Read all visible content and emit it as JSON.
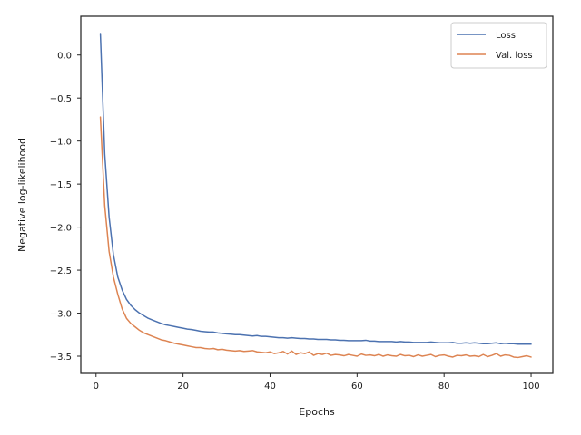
{
  "chart_data": {
    "type": "line",
    "xlabel": "Epochs",
    "ylabel": "Negative log-likelihood",
    "xlim": [
      -3.5,
      105
    ],
    "ylim": [
      -3.7,
      0.45
    ],
    "xticks": [
      0,
      20,
      40,
      60,
      80,
      100
    ],
    "yticks": [
      0.0,
      -0.5,
      -1.0,
      -1.5,
      -2.0,
      -2.5,
      -3.0,
      -3.5
    ],
    "xtick_labels": [
      "0",
      "20",
      "40",
      "60",
      "80",
      "100"
    ],
    "ytick_labels": [
      "0.0",
      "−0.5",
      "−1.0",
      "−1.5",
      "−2.0",
      "−2.5",
      "−3.0",
      "−3.5"
    ],
    "grid": false,
    "legend_position": "top-right",
    "x": [
      1,
      2,
      3,
      4,
      5,
      6,
      7,
      8,
      9,
      10,
      11,
      12,
      13,
      14,
      15,
      16,
      17,
      18,
      19,
      20,
      21,
      22,
      23,
      24,
      25,
      26,
      27,
      28,
      29,
      30,
      31,
      32,
      33,
      34,
      35,
      36,
      37,
      38,
      39,
      40,
      41,
      42,
      43,
      44,
      45,
      46,
      47,
      48,
      49,
      50,
      51,
      52,
      53,
      54,
      55,
      56,
      57,
      58,
      59,
      60,
      61,
      62,
      63,
      64,
      65,
      66,
      67,
      68,
      69,
      70,
      71,
      72,
      73,
      74,
      75,
      76,
      77,
      78,
      79,
      80,
      81,
      82,
      83,
      84,
      85,
      86,
      87,
      88,
      89,
      90,
      91,
      92,
      93,
      94,
      95,
      96,
      97,
      98,
      99,
      100
    ],
    "series": [
      {
        "name": "Loss",
        "color": "#4c72b0",
        "values": [
          0.25,
          -1.15,
          -1.88,
          -2.32,
          -2.58,
          -2.73,
          -2.84,
          -2.91,
          -2.96,
          -3.0,
          -3.03,
          -3.06,
          -3.08,
          -3.1,
          -3.12,
          -3.135,
          -3.145,
          -3.155,
          -3.165,
          -3.175,
          -3.185,
          -3.19,
          -3.2,
          -3.21,
          -3.215,
          -3.22,
          -3.22,
          -3.23,
          -3.235,
          -3.24,
          -3.245,
          -3.25,
          -3.25,
          -3.255,
          -3.26,
          -3.265,
          -3.26,
          -3.27,
          -3.27,
          -3.275,
          -3.28,
          -3.285,
          -3.285,
          -3.29,
          -3.285,
          -3.29,
          -3.295,
          -3.295,
          -3.3,
          -3.3,
          -3.305,
          -3.305,
          -3.305,
          -3.31,
          -3.31,
          -3.315,
          -3.315,
          -3.32,
          -3.32,
          -3.32,
          -3.32,
          -3.315,
          -3.325,
          -3.325,
          -3.33,
          -3.33,
          -3.33,
          -3.33,
          -3.335,
          -3.33,
          -3.335,
          -3.335,
          -3.34,
          -3.34,
          -3.34,
          -3.34,
          -3.335,
          -3.34,
          -3.345,
          -3.345,
          -3.345,
          -3.34,
          -3.35,
          -3.35,
          -3.345,
          -3.35,
          -3.345,
          -3.35,
          -3.355,
          -3.355,
          -3.35,
          -3.345,
          -3.355,
          -3.35,
          -3.355,
          -3.355,
          -3.36,
          -3.36,
          -3.36,
          -3.36
        ]
      },
      {
        "name": "Val. loss",
        "color": "#dd8452",
        "values": [
          -0.72,
          -1.75,
          -2.28,
          -2.58,
          -2.78,
          -2.95,
          -3.06,
          -3.12,
          -3.16,
          -3.2,
          -3.23,
          -3.25,
          -3.27,
          -3.29,
          -3.31,
          -3.32,
          -3.335,
          -3.35,
          -3.36,
          -3.37,
          -3.38,
          -3.39,
          -3.4,
          -3.4,
          -3.41,
          -3.415,
          -3.41,
          -3.425,
          -3.42,
          -3.43,
          -3.435,
          -3.44,
          -3.435,
          -3.445,
          -3.44,
          -3.435,
          -3.45,
          -3.455,
          -3.46,
          -3.45,
          -3.47,
          -3.46,
          -3.445,
          -3.475,
          -3.44,
          -3.48,
          -3.46,
          -3.47,
          -3.45,
          -3.49,
          -3.47,
          -3.48,
          -3.465,
          -3.49,
          -3.48,
          -3.485,
          -3.495,
          -3.48,
          -3.49,
          -3.5,
          -3.475,
          -3.49,
          -3.485,
          -3.495,
          -3.48,
          -3.5,
          -3.485,
          -3.495,
          -3.5,
          -3.48,
          -3.495,
          -3.49,
          -3.505,
          -3.485,
          -3.5,
          -3.49,
          -3.48,
          -3.505,
          -3.49,
          -3.485,
          -3.5,
          -3.51,
          -3.49,
          -3.495,
          -3.485,
          -3.5,
          -3.495,
          -3.505,
          -3.48,
          -3.505,
          -3.49,
          -3.47,
          -3.5,
          -3.485,
          -3.49,
          -3.51,
          -3.515,
          -3.505,
          -3.495,
          -3.51
        ]
      }
    ]
  }
}
